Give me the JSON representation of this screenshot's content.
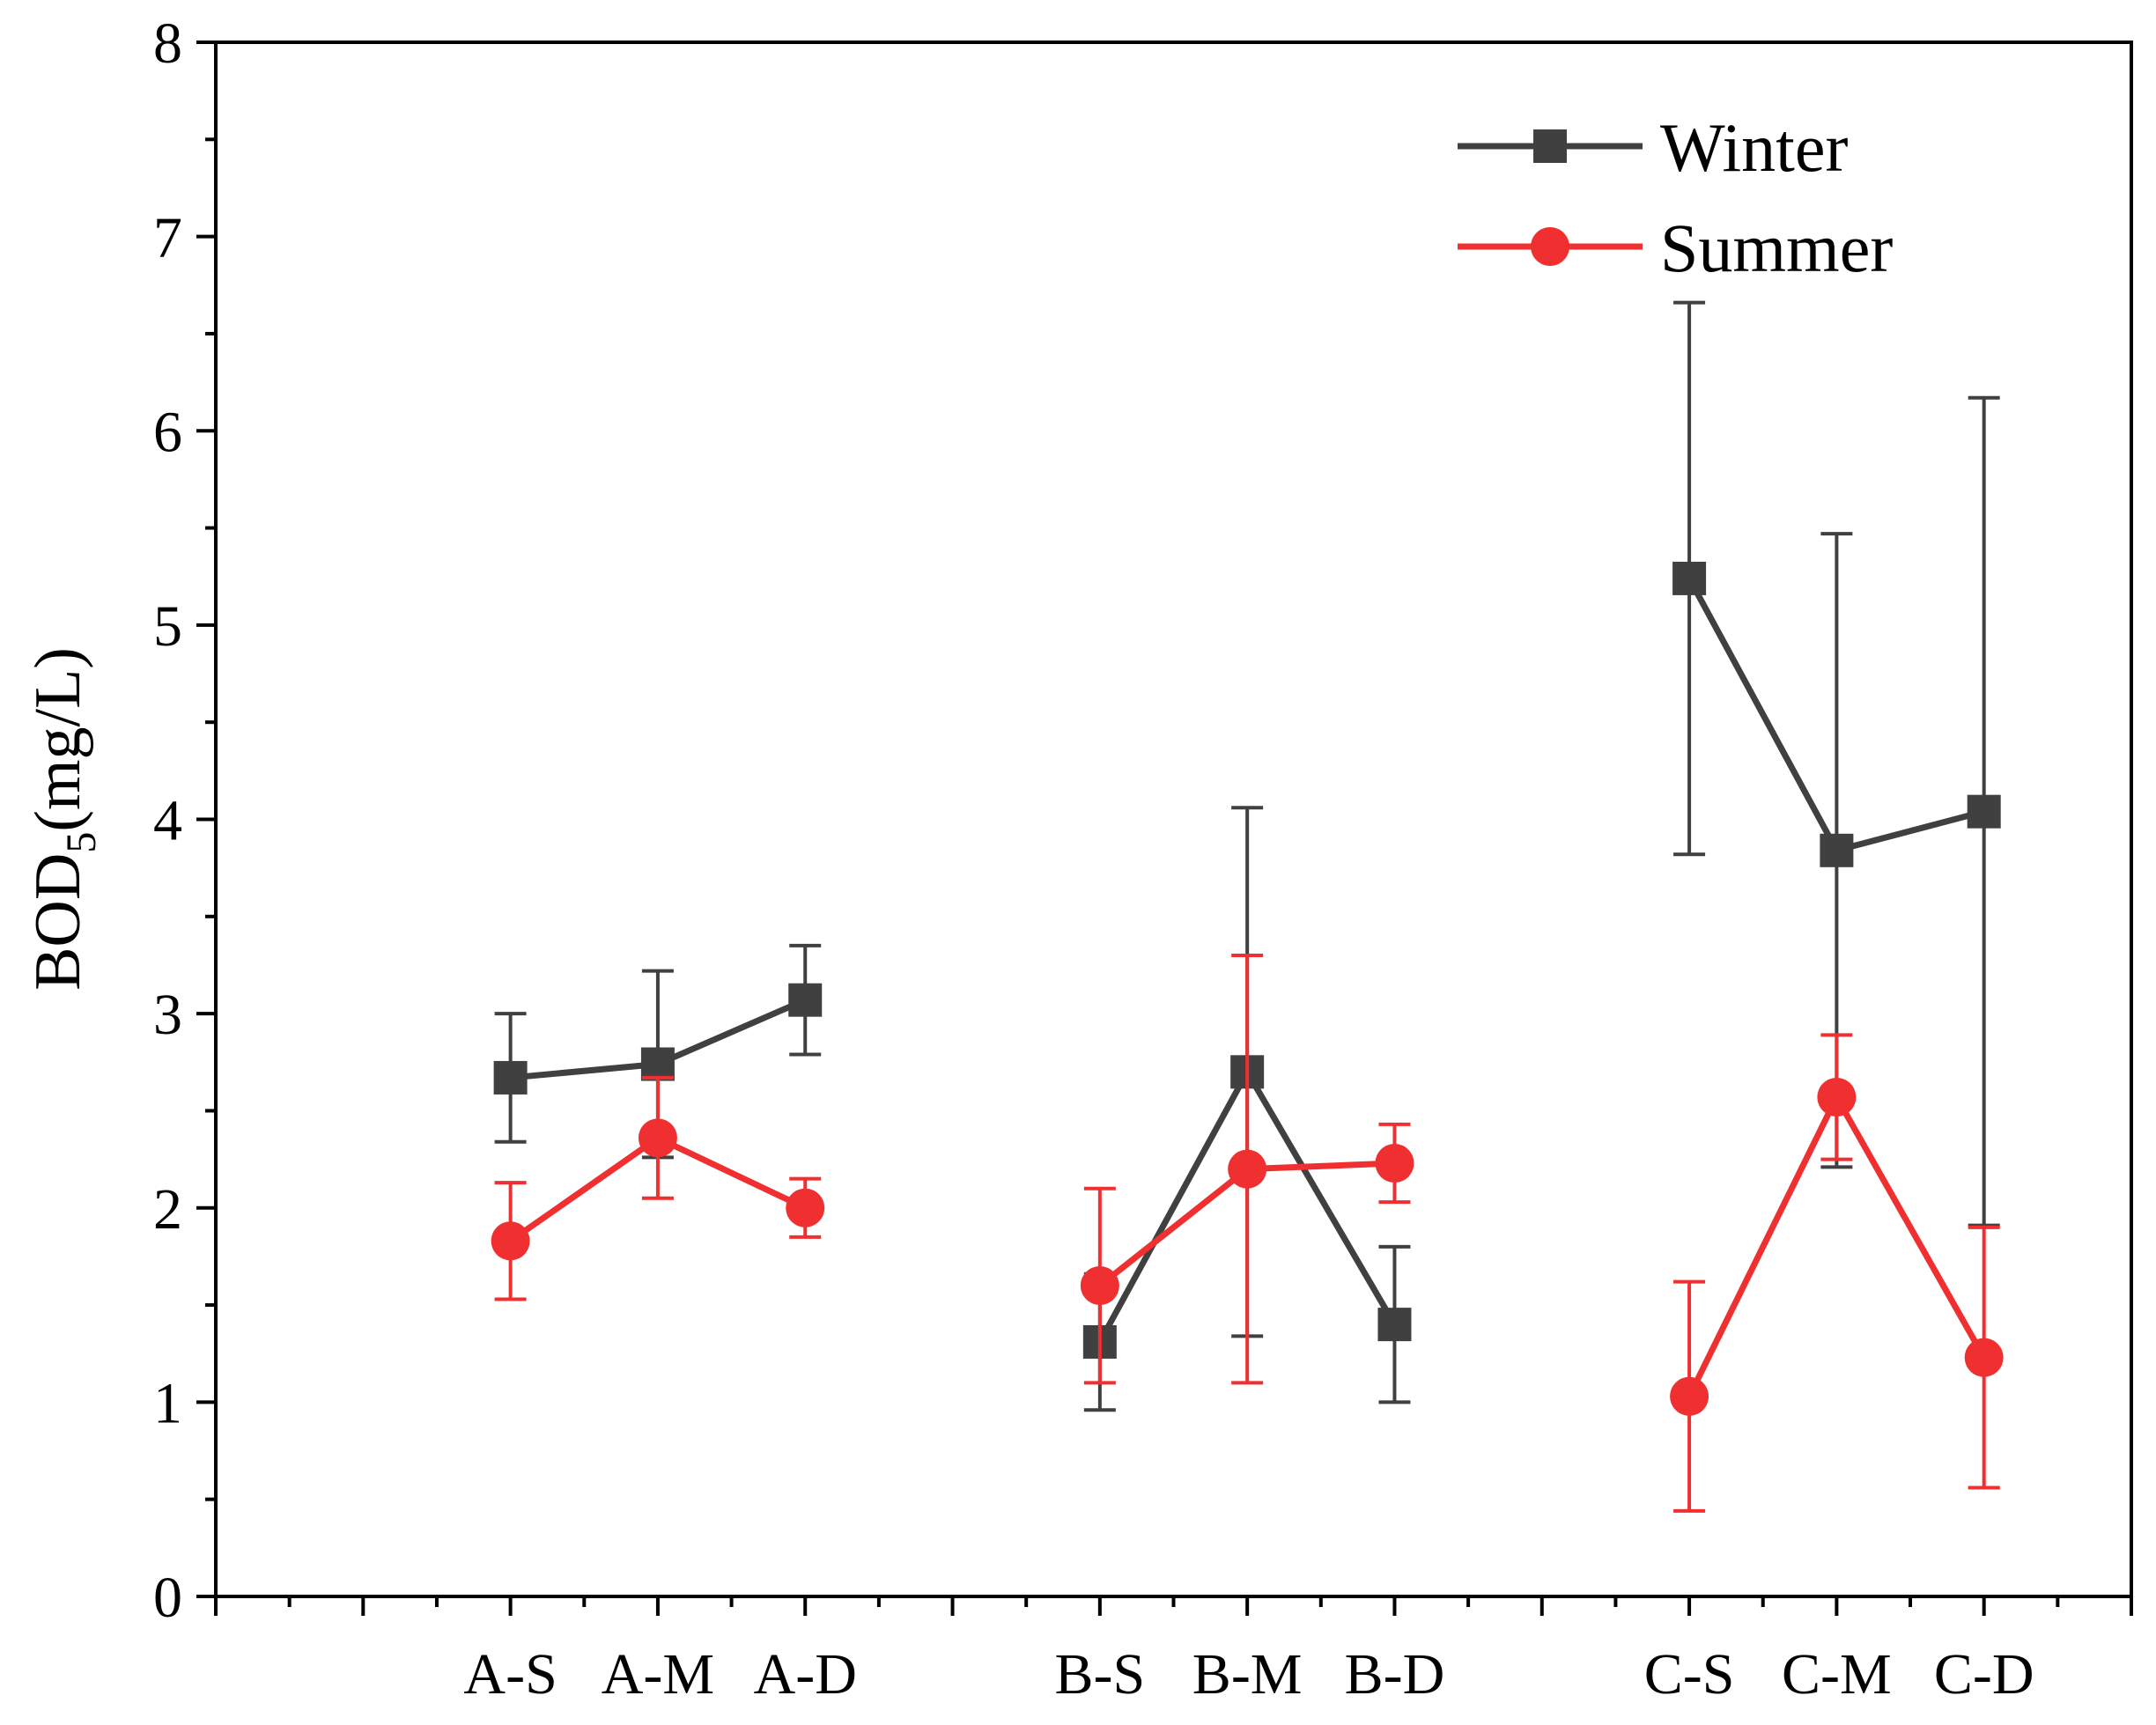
{
  "chart_data": {
    "type": "line",
    "title": "",
    "xlabel": "",
    "ylabel": {
      "main": "BOD",
      "subscript": "5",
      "unit": "(mg/L)"
    },
    "ylim": [
      0,
      8
    ],
    "yticks": [
      "0",
      "1",
      "2",
      "3",
      "4",
      "5",
      "6",
      "7",
      "8"
    ],
    "categories": [
      "A-S",
      "A-M",
      "A-D",
      "B-S",
      "B-M",
      "B-D",
      "C-S",
      "C-M",
      "C-D"
    ],
    "category_positions": [
      2,
      3,
      4,
      6,
      7,
      8,
      10,
      11,
      12
    ],
    "xlim": [
      0,
      13
    ],
    "legend_position": "top-right",
    "series": [
      {
        "name": "Winter",
        "color": "#404040",
        "marker": "square",
        "values": [
          2.67,
          2.74,
          3.07,
          1.31,
          2.7,
          1.4,
          5.24,
          3.84,
          4.04
        ],
        "errors": [
          0.33,
          0.48,
          0.28,
          0.35,
          1.36,
          0.4,
          1.42,
          1.63,
          2.13
        ]
      },
      {
        "name": "Summer",
        "color": "#f03030",
        "marker": "circle",
        "values": [
          1.83,
          2.36,
          2.0,
          1.6,
          2.2,
          2.23,
          1.03,
          2.57,
          1.23
        ],
        "errors": [
          0.3,
          0.31,
          0.15,
          0.5,
          1.1,
          0.2,
          0.59,
          0.32,
          0.67
        ]
      }
    ]
  }
}
